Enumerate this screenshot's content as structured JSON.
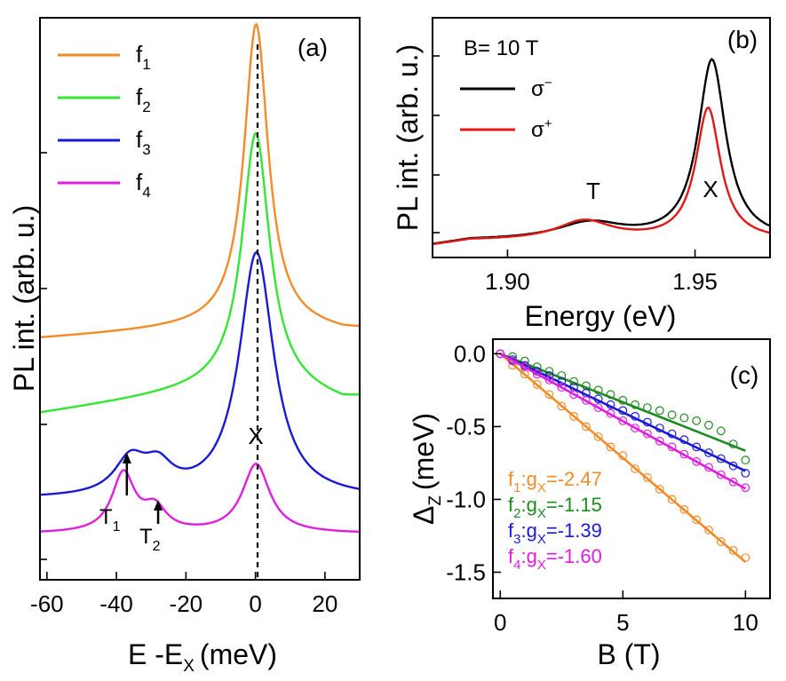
{
  "chart_data": [
    {
      "panel": "(a)",
      "type": "line",
      "xlabel": "E -E",
      "xlabel_sub": "X",
      "xlabel_unit": "(meV)",
      "ylabel": "PL int. (arb. u.)",
      "xlim": [
        -62,
        30
      ],
      "ylim": [
        0,
        11
      ],
      "xticks": [
        "-60",
        "-40",
        "-20",
        "0",
        "20"
      ],
      "xtick_values": [
        -60,
        -40,
        -20,
        0,
        20
      ],
      "dashed_line_at": 0,
      "annotations": {
        "X": "X",
        "T1": "T",
        "T1_sub": "1",
        "T2": "T",
        "T2_sub": "2"
      },
      "t1_arrow_x": -37,
      "t2_arrow_x": -28,
      "series": [
        {
          "name": "f",
          "sub": "1",
          "color": "#f28c28",
          "offset": 4.72,
          "amp_x": 5.88,
          "x0": 0.2,
          "w_x": 4.2,
          "lin_a": 0.0044,
          "lin_b": 0.27,
          "trions": []
        },
        {
          "name": "f",
          "sub": "2",
          "color": "#33e633",
          "offset": 3.25,
          "amp_x": 4.9,
          "x0": 0.1,
          "w_x": 4.8,
          "lin_a": 0.0095,
          "lin_b": 0.62,
          "trions": []
        },
        {
          "name": "f",
          "sub": "3",
          "color": "#1a1ad6",
          "offset": 1.58,
          "amp_x": 4.8,
          "x0": 0.3,
          "w_x": 6.0,
          "lin_a": 0,
          "lin_b": 0,
          "trions": [
            {
              "c": -36,
              "a": 0.68,
              "w": 5.5
            },
            {
              "c": -28,
              "a": 0.5,
              "w": 5.0
            }
          ]
        },
        {
          "name": "f",
          "sub": "4",
          "color": "#e01ee0",
          "offset": 0.9,
          "amp_x": 1.35,
          "x0": 0.2,
          "w_x": 4.8,
          "lin_a": 0,
          "lin_b": 0,
          "trions": [
            {
              "c": -38,
              "a": 1.15,
              "w": 4.0
            },
            {
              "c": -29,
              "a": 0.45,
              "w": 4.0
            }
          ]
        }
      ]
    },
    {
      "panel": "(b)",
      "type": "line",
      "title_text": "B= 10 T",
      "xlabel": "Energy (eV)",
      "ylabel": "PL int. (arb. u.)",
      "xlim": [
        1.88,
        1.97
      ],
      "ylim": [
        0,
        4
      ],
      "xticks": [
        "1.90",
        "1.95"
      ],
      "xtick_values": [
        1.9,
        1.95
      ],
      "annotations": {
        "T": "T",
        "X": "X"
      },
      "series": [
        {
          "name": "σ",
          "sup": "−",
          "color": "#000000",
          "peak_x": 1.9545,
          "amp_x": 3.0,
          "w_x": 0.0045,
          "t_c": 1.922,
          "t_a": 0.28,
          "t_w": 0.011
        },
        {
          "name": "σ",
          "sup": "+",
          "color": "#e01818",
          "peak_x": 1.9535,
          "amp_x": 2.2,
          "w_x": 0.004,
          "t_c": 1.9205,
          "t_a": 0.32,
          "t_w": 0.009
        }
      ]
    },
    {
      "panel": "(c)",
      "type": "scatter",
      "xlabel": "B (T)",
      "ylabel": "Δ",
      "ylabel_sub": "Z",
      "ylabel_unit": "(meV)",
      "xlim": [
        -0.3,
        11.0
      ],
      "ylim": [
        -1.68,
        0.1
      ],
      "xticks": [
        "0",
        "5",
        "10"
      ],
      "xtick_values": [
        0,
        5,
        10
      ],
      "yticks": [
        "0.0",
        "-0.5",
        "-1.0",
        "-1.5"
      ],
      "ytick_values": [
        0,
        -0.5,
        -1.0,
        -1.5
      ],
      "x": [
        0,
        0.5,
        1,
        1.5,
        2,
        2.5,
        3,
        3.5,
        4,
        4.5,
        5,
        5.5,
        6,
        6.5,
        7,
        7.5,
        8,
        8.5,
        9,
        9.5,
        10
      ],
      "series": [
        {
          "label": "f",
          "sub": "1",
          "mid": ":g",
          "sub2": "X",
          "value": "=-2.47",
          "g": -2.47,
          "color": "#f28c28",
          "slope": -0.143,
          "data": [
            0.0,
            -0.08,
            -0.14,
            -0.21,
            -0.28,
            -0.36,
            -0.43,
            -0.5,
            -0.57,
            -0.64,
            -0.7,
            -0.79,
            -0.85,
            -0.93,
            -1.0,
            -1.07,
            -1.14,
            -1.21,
            -1.29,
            -1.35,
            -1.4
          ]
        },
        {
          "label": "f",
          "sub": "2",
          "mid": ":g",
          "sub2": "X",
          "value": "=-1.15",
          "g": -1.15,
          "color": "#1f8a1f",
          "slope": -0.0666,
          "data": [
            0.0,
            -0.02,
            -0.05,
            -0.09,
            -0.12,
            -0.15,
            -0.19,
            -0.22,
            -0.25,
            -0.28,
            -0.32,
            -0.35,
            -0.37,
            -0.39,
            -0.42,
            -0.44,
            -0.46,
            -0.49,
            -0.53,
            -0.62,
            -0.73
          ]
        },
        {
          "label": "f",
          "sub": "3",
          "mid": ":g",
          "sub2": "X",
          "value": "=-1.39",
          "g": -1.39,
          "color": "#1a1ad6",
          "slope": -0.0805,
          "data": [
            0.0,
            -0.04,
            -0.08,
            -0.12,
            -0.15,
            -0.19,
            -0.23,
            -0.27,
            -0.31,
            -0.35,
            -0.39,
            -0.43,
            -0.47,
            -0.51,
            -0.55,
            -0.59,
            -0.64,
            -0.68,
            -0.72,
            -0.77,
            -0.82
          ]
        },
        {
          "label": "f",
          "sub": "4",
          "mid": ":g",
          "sub2": "X",
          "value": "=-1.60",
          "g": -1.6,
          "color": "#e01ee0",
          "slope": -0.0926,
          "data": [
            0.0,
            -0.05,
            -0.09,
            -0.14,
            -0.18,
            -0.23,
            -0.28,
            -0.32,
            -0.37,
            -0.41,
            -0.46,
            -0.51,
            -0.55,
            -0.6,
            -0.64,
            -0.69,
            -0.74,
            -0.78,
            -0.83,
            -0.88,
            -0.92
          ]
        }
      ]
    }
  ]
}
